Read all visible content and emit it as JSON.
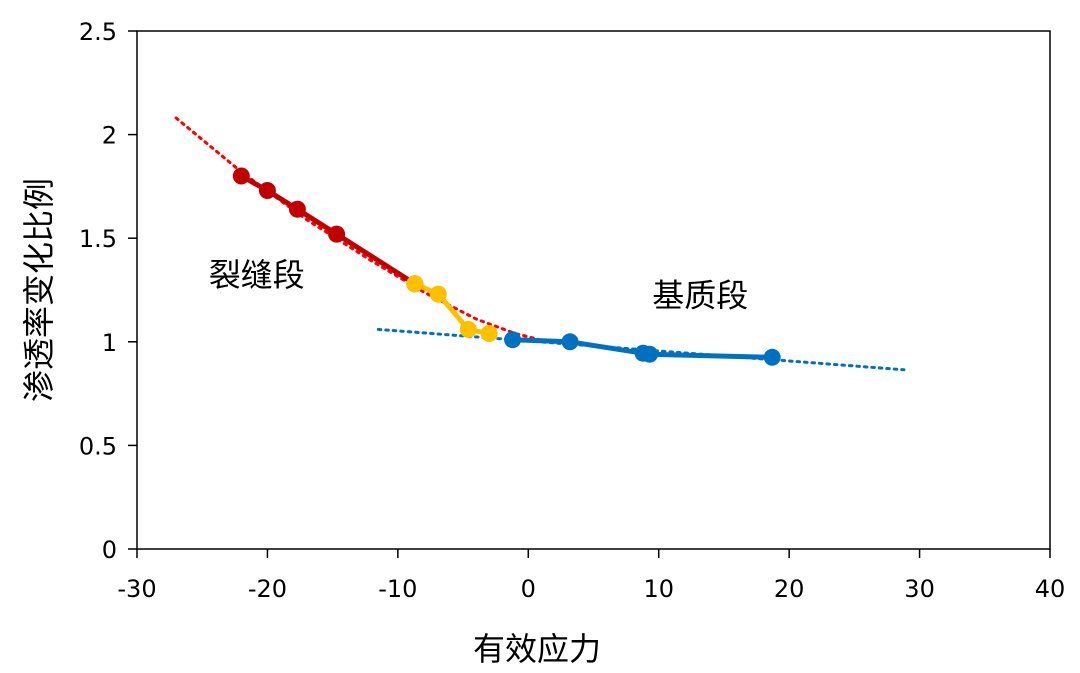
{
  "chart_data": {
    "type": "line",
    "title": "",
    "xlabel": "有效应力",
    "ylabel": "渗透率变化比例",
    "xlim": [
      -30,
      40
    ],
    "ylim": [
      0,
      2.5
    ],
    "xticks": [
      -30,
      -20,
      -10,
      0,
      10,
      20,
      30,
      40
    ],
    "xtick_labels": [
      "-30",
      "-20",
      "-10",
      "0",
      "10",
      "20",
      "30",
      "40"
    ],
    "yticks": [
      0,
      0.5,
      1,
      1.5,
      2,
      2.5
    ],
    "ytick_labels": [
      "0",
      "0.5",
      "1",
      "1.5",
      "2",
      "2.5"
    ],
    "grid": false,
    "legend": "none",
    "annotations": [
      {
        "id": "fracture",
        "text": "裂缝段",
        "x": -24.5,
        "y": 1.27
      },
      {
        "id": "matrix",
        "text": "基质段",
        "x": 9.5,
        "y": 1.17
      }
    ],
    "series": [
      {
        "id": "fracture-data",
        "color": "#C00000",
        "style": "solid-markers",
        "x": [
          -22,
          -20,
          -17.7,
          -14.7,
          -8.7
        ],
        "y": [
          1.8,
          1.73,
          1.64,
          1.52,
          1.28
        ]
      },
      {
        "id": "transition-data",
        "color": "#FFC000",
        "style": "solid-markers",
        "x": [
          -8.7,
          -6.9,
          -4.6,
          -3.0
        ],
        "y": [
          1.28,
          1.23,
          1.06,
          1.04
        ]
      },
      {
        "id": "matrix-data",
        "color": "#0070C0",
        "style": "solid-markers",
        "x": [
          -1.2,
          3.2,
          8.8,
          9.3,
          18.7
        ],
        "y": [
          1.01,
          1.0,
          0.945,
          0.94,
          0.925
        ]
      },
      {
        "id": "fracture-trend",
        "color": "#FF0000",
        "style": "dotted",
        "x": [
          -27,
          -22,
          -17,
          -12,
          -8,
          -4,
          -1,
          1.5
        ],
        "y": [
          2.08,
          1.82,
          1.59,
          1.39,
          1.24,
          1.11,
          1.04,
          1.0
        ]
      },
      {
        "id": "matrix-trend",
        "color": "#0070C0",
        "style": "dotted",
        "x": [
          -11.5,
          28.8
        ],
        "y": [
          1.06,
          0.865
        ]
      }
    ]
  }
}
